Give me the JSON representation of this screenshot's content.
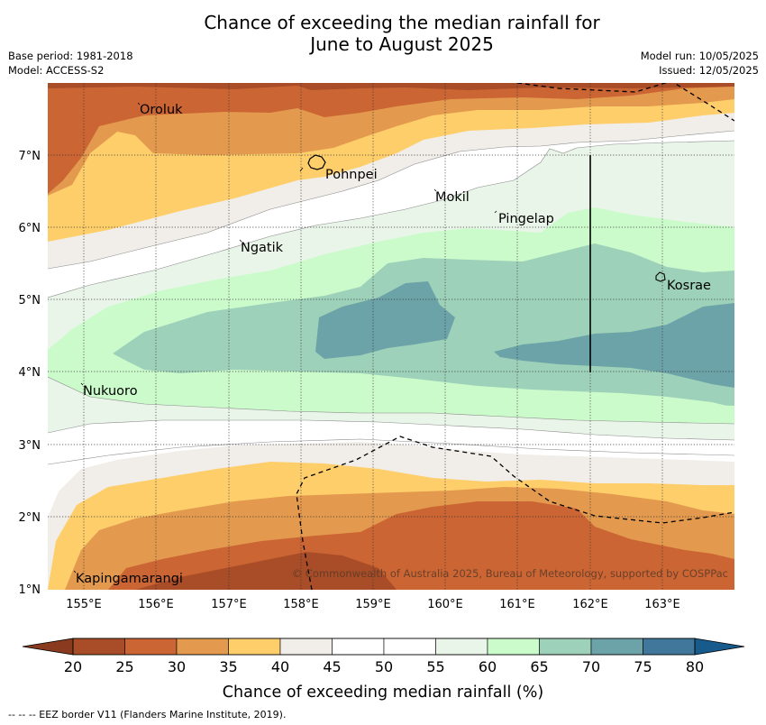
{
  "title_line1": "Chance of exceeding the median rainfall for",
  "title_line2": "June to August 2025",
  "meta": {
    "base_period": "Base period: 1981-2018",
    "model": "Model: ACCESS-S2",
    "model_run": "Model run: 10/05/2025",
    "issued": "Issued: 12/05/2025"
  },
  "map": {
    "lat_labels": [
      "7°N",
      "6°N",
      "5°N",
      "4°N",
      "3°N",
      "2°N",
      "1°N"
    ],
    "lon_labels": [
      "155°E",
      "156°E",
      "157°E",
      "158°E",
      "159°E",
      "160°E",
      "161°E",
      "162°E",
      "163°E"
    ],
    "places": [
      {
        "name": "Oroluk"
      },
      {
        "name": "Pohnpei"
      },
      {
        "name": "Mokil"
      },
      {
        "name": "Pingelap"
      },
      {
        "name": "Ngatik"
      },
      {
        "name": "Kosrae"
      },
      {
        "name": "Nukuoro"
      },
      {
        "name": "Kapingamarangi"
      }
    ],
    "copyright": "© Commonwealth of Australia 2025, Bureau of Meteorology, supported by COSPPac"
  },
  "colorbar": {
    "ticks": [
      "20",
      "25",
      "30",
      "35",
      "40",
      "45",
      "50",
      "55",
      "60",
      "65",
      "70",
      "75",
      "80"
    ],
    "colors": [
      "#a84d27",
      "#cb6533",
      "#e39a4e",
      "#fece6b",
      "#f1ede8",
      "#ffffff",
      "#ffffff",
      "#e9f5e8",
      "#cbfbcb",
      "#9ed1b9",
      "#6ca3a8",
      "#40779a"
    ],
    "low_extend_color": "#8a3a1e",
    "high_extend_color": "#175a8c",
    "label": "Chance of exceeding median rainfall (%)"
  },
  "footer": "--  --  -- EEZ border V11 (Flanders Marine Institute, 2019)."
}
